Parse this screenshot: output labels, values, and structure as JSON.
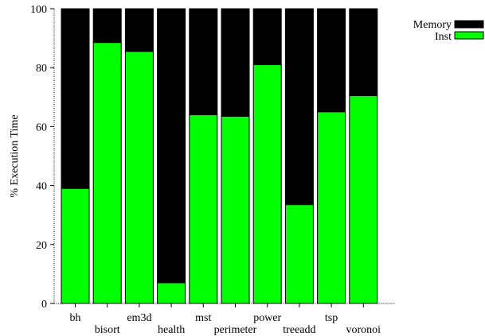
{
  "chart_data": {
    "type": "bar",
    "stacked": true,
    "normalized_percent": true,
    "title": "",
    "xlabel": "",
    "ylabel": "% Execution Time",
    "ylim": [
      0,
      100
    ],
    "yticks": [
      0,
      20,
      40,
      60,
      80,
      100
    ],
    "grid": false,
    "legend_position": "top-right",
    "categories": [
      "bh",
      "bisort",
      "em3d",
      "health",
      "mst",
      "perimeter",
      "power",
      "treeadd",
      "tsp",
      "voronoi"
    ],
    "series": [
      {
        "name": "Inst",
        "color": "#00ff00",
        "values": [
          39,
          88.5,
          85.5,
          7,
          64,
          63.5,
          81,
          33.5,
          65,
          70.5
        ]
      },
      {
        "name": "Memory",
        "color": "#000000",
        "values": [
          61,
          11.5,
          14.5,
          93,
          36,
          36.5,
          19,
          66.5,
          35,
          29.5
        ]
      }
    ]
  }
}
